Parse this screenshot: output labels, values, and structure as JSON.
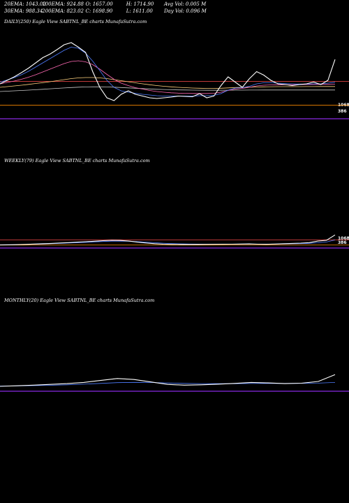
{
  "header": {
    "row1": [
      "20EMA: 1043.02",
      "100EMA: 924.88",
      "O: 1657.00",
      "H: 1714.90",
      "Avg Vol: 0.005 M"
    ],
    "row2": [
      "30EMA: 988.34",
      "200EMA: 823.02",
      "C: 1698.90",
      "L: 1611.00",
      "Day Vol: 0.096  M"
    ]
  },
  "panels": {
    "daily": {
      "title": "DAILY(250) Eagle   View  SABTNL_BE charts MunafaSutra.com",
      "label_hi": "1068",
      "label_lo": "386"
    },
    "weekly": {
      "title": "WEEKLY(79) Eagle   View  SABTNL_BE charts MunafaSutra.com",
      "label_hi": "1068",
      "label_lo": "386"
    },
    "monthly": {
      "title": "MONTHLY(20) Eagle   View  SABTNL_BE charts MunafaSutra.com"
    }
  },
  "colors": {
    "price": "#ffffff",
    "ema20": "#4f7dff",
    "ema30": "#ff69b4",
    "ema100": "#ffd27f",
    "ema200": "#c8c8c8",
    "hline": "#ff8c00",
    "vol": "#8a2be2"
  },
  "chart_data": [
    {
      "type": "line",
      "name": "daily",
      "ylim": [
        0,
        2200
      ],
      "series": [
        {
          "name": "price",
          "values": [
            1000,
            1100,
            1200,
            1320,
            1450,
            1600,
            1750,
            1850,
            1980,
            2120,
            2180,
            2050,
            1900,
            1350,
            900,
            600,
            520,
            700,
            800,
            700,
            650,
            600,
            580,
            600,
            620,
            650,
            640,
            630,
            720,
            600,
            650,
            950,
            1200,
            1050,
            900,
            1150,
            1350,
            1250,
            1100,
            1000,
            980,
            950,
            980,
            1000,
            1050,
            980,
            1100,
            1698
          ]
        },
        {
          "name": "ema20",
          "values": [
            1050,
            1110,
            1180,
            1260,
            1360,
            1480,
            1600,
            1720,
            1840,
            1960,
            2050,
            2020,
            1880,
            1650,
            1380,
            1100,
            900,
            800,
            760,
            730,
            700,
            680,
            660,
            650,
            650,
            650,
            650,
            650,
            660,
            660,
            670,
            720,
            820,
            880,
            890,
            930,
            1000,
            1030,
            1030,
            1020,
            1010,
            1000,
            995,
            995,
            1000,
            1000,
            1020,
            1043
          ]
        },
        {
          "name": "ema30",
          "values": [
            1000,
            1040,
            1080,
            1130,
            1190,
            1260,
            1340,
            1420,
            1500,
            1580,
            1640,
            1660,
            1630,
            1550,
            1420,
            1270,
            1130,
            1020,
            950,
            890,
            850,
            810,
            780,
            760,
            745,
            735,
            730,
            725,
            725,
            725,
            730,
            760,
            810,
            850,
            870,
            900,
            940,
            960,
            970,
            975,
            975,
            975,
            978,
            980,
            982,
            983,
            985,
            988
          ]
        },
        {
          "name": "ema100",
          "values": [
            900,
            920,
            940,
            960,
            985,
            1010,
            1035,
            1060,
            1090,
            1120,
            1150,
            1170,
            1180,
            1180,
            1170,
            1150,
            1120,
            1090,
            1060,
            1030,
            1000,
            975,
            950,
            930,
            915,
            900,
            890,
            880,
            875,
            870,
            870,
            875,
            885,
            895,
            900,
            905,
            910,
            915,
            918,
            920,
            920,
            921,
            921,
            922,
            922,
            923,
            924,
            925
          ]
        },
        {
          "name": "ema200",
          "values": [
            780,
            790,
            800,
            810,
            820,
            832,
            845,
            858,
            870,
            882,
            895,
            905,
            912,
            915,
            915,
            912,
            905,
            895,
            885,
            875,
            865,
            855,
            845,
            838,
            832,
            827,
            823,
            820,
            818,
            817,
            816,
            816,
            818,
            820,
            821,
            822,
            822,
            823,
            823,
            823,
            823,
            823,
            823,
            823,
            823,
            823,
            823,
            823
          ]
        }
      ],
      "hlines": [
        1068,
        386
      ]
    },
    {
      "type": "line",
      "name": "weekly",
      "ylim": [
        0,
        5000
      ],
      "series": [
        {
          "name": "price",
          "values": [
            400,
            420,
            440,
            470,
            520,
            560,
            600,
            650,
            700,
            760,
            820,
            880,
            950,
            1000,
            980,
            900,
            760,
            650,
            560,
            500,
            470,
            460,
            450,
            460,
            470,
            480,
            490,
            500,
            520,
            540,
            500,
            480,
            520,
            560,
            600,
            640,
            700,
            900,
            1000,
            1698
          ]
        },
        {
          "name": "ema20",
          "values": [
            420,
            430,
            440,
            460,
            490,
            520,
            560,
            600,
            650,
            700,
            750,
            800,
            850,
            890,
            900,
            880,
            830,
            760,
            690,
            630,
            580,
            550,
            520,
            505,
            495,
            490,
            490,
            492,
            500,
            510,
            510,
            505,
            510,
            525,
            545,
            570,
            605,
            680,
            780,
            1043
          ]
        }
      ],
      "hlines": [
        1068,
        386
      ]
    },
    {
      "type": "line",
      "name": "monthly",
      "ylim": [
        0,
        5000
      ],
      "series": [
        {
          "name": "price",
          "values": [
            500,
            560,
            620,
            700,
            780,
            900,
            1100,
            1300,
            1200,
            950,
            700,
            620,
            660,
            720,
            800,
            900,
            850,
            780,
            820,
            1000,
            1698
          ]
        },
        {
          "name": "ema20",
          "values": [
            520,
            540,
            570,
            610,
            660,
            720,
            800,
            880,
            910,
            890,
            840,
            800,
            780,
            770,
            775,
            790,
            800,
            800,
            805,
            830,
            900
          ]
        }
      ]
    }
  ]
}
